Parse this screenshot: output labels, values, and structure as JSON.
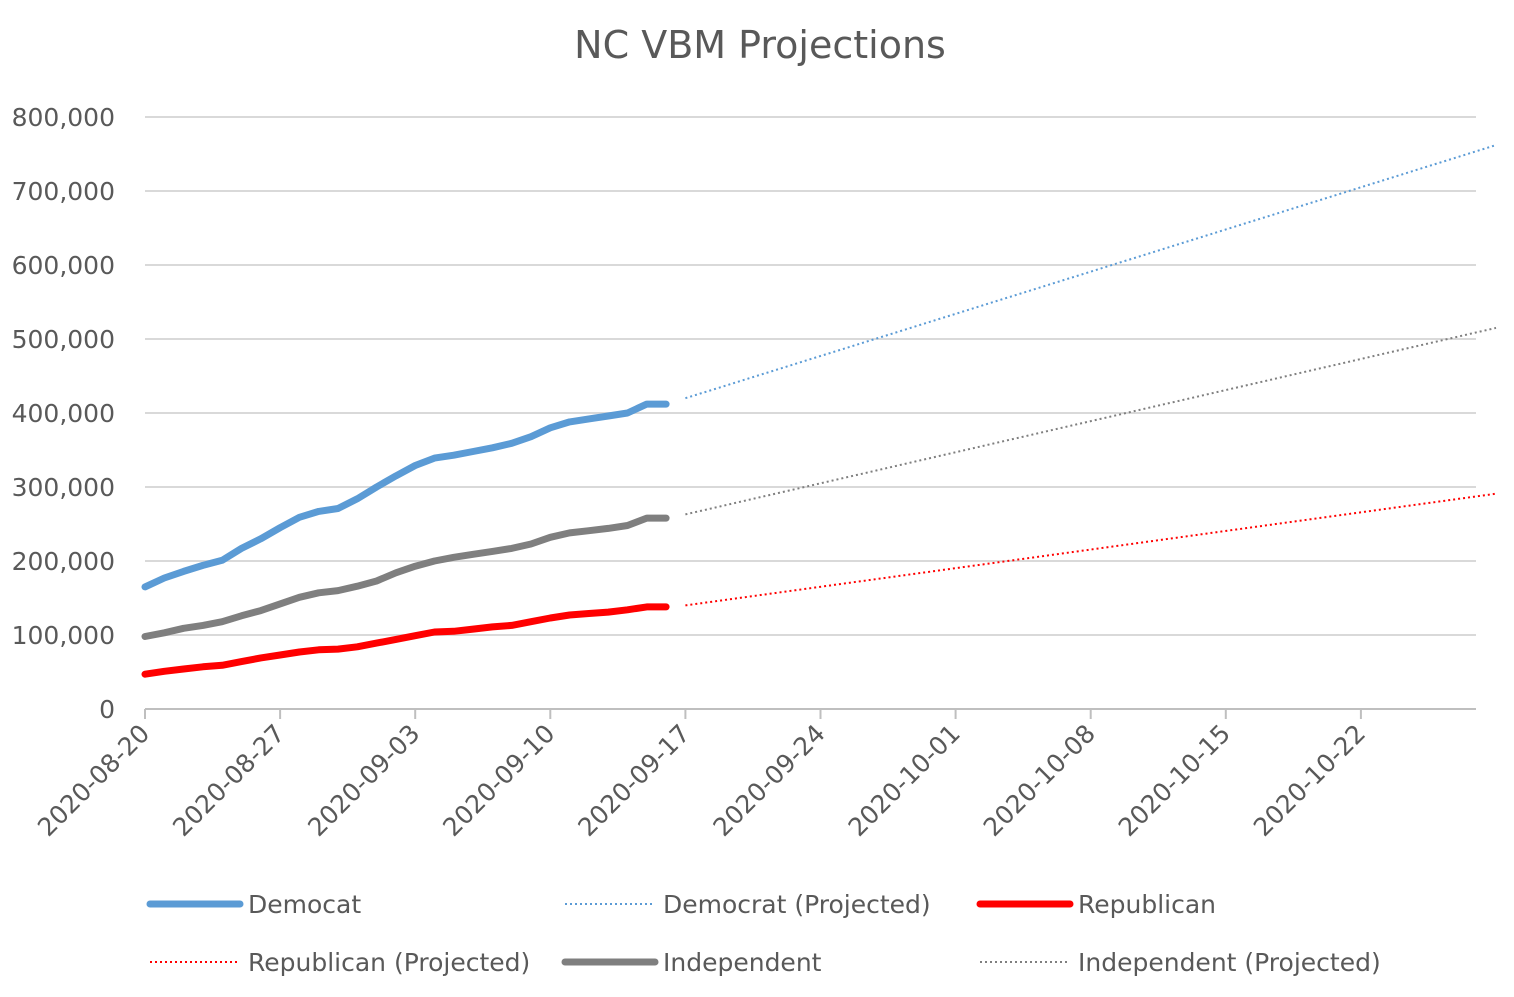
{
  "chart_data": {
    "type": "line",
    "title": "NC VBM Projections",
    "xlabel": "",
    "ylabel": "",
    "ylim": [
      0,
      800000
    ],
    "xlim": [
      "2020-08-20",
      "2020-10-29"
    ],
    "grid": true,
    "y_ticks": [
      {
        "value": 0,
        "label": "0"
      },
      {
        "value": 100000,
        "label": "100,000"
      },
      {
        "value": 200000,
        "label": "200,000"
      },
      {
        "value": 300000,
        "label": "300,000"
      },
      {
        "value": 400000,
        "label": "400,000"
      },
      {
        "value": 500000,
        "label": "500,000"
      },
      {
        "value": 600000,
        "label": "600,000"
      },
      {
        "value": 700000,
        "label": "700,000"
      },
      {
        "value": 800000,
        "label": "800,000"
      }
    ],
    "x_ticks": [
      "2020-08-20",
      "2020-08-27",
      "2020-09-03",
      "2020-09-10",
      "2020-09-17",
      "2020-09-24",
      "2020-10-01",
      "2020-10-08",
      "2020-10-15",
      "2020-10-22"
    ],
    "legend_position": "bottom",
    "series": [
      {
        "name": "Democat",
        "color": "#5B9BD5",
        "style": "solid",
        "x": [
          "2020-08-20",
          "2020-08-21",
          "2020-08-22",
          "2020-08-23",
          "2020-08-24",
          "2020-08-25",
          "2020-08-26",
          "2020-08-27",
          "2020-08-28",
          "2020-08-29",
          "2020-08-30",
          "2020-08-31",
          "2020-09-01",
          "2020-09-02",
          "2020-09-03",
          "2020-09-04",
          "2020-09-05",
          "2020-09-06",
          "2020-09-07",
          "2020-09-08",
          "2020-09-09",
          "2020-09-10",
          "2020-09-11",
          "2020-09-12",
          "2020-09-13",
          "2020-09-14",
          "2020-09-15",
          "2020-09-16"
        ],
        "y": [
          165000,
          177000,
          186000,
          194000,
          201000,
          217000,
          230000,
          245000,
          259000,
          267000,
          271000,
          284000,
          300000,
          315000,
          329000,
          339000,
          343000,
          348000,
          353000,
          359000,
          368000,
          380000,
          388000,
          392000,
          396000,
          400000,
          412000,
          412000
        ]
      },
      {
        "name": "Democrat (Projected)",
        "color": "#5B9BD5",
        "style": "dotted",
        "x": [
          "2020-09-17",
          "2020-10-29"
        ],
        "y": [
          420000,
          762000
        ]
      },
      {
        "name": "Republican",
        "color": "#FF0000",
        "style": "solid",
        "x": [
          "2020-08-20",
          "2020-08-21",
          "2020-08-22",
          "2020-08-23",
          "2020-08-24",
          "2020-08-25",
          "2020-08-26",
          "2020-08-27",
          "2020-08-28",
          "2020-08-29",
          "2020-08-30",
          "2020-08-31",
          "2020-09-01",
          "2020-09-02",
          "2020-09-03",
          "2020-09-04",
          "2020-09-05",
          "2020-09-06",
          "2020-09-07",
          "2020-09-08",
          "2020-09-09",
          "2020-09-10",
          "2020-09-11",
          "2020-09-12",
          "2020-09-13",
          "2020-09-14",
          "2020-09-15",
          "2020-09-16"
        ],
        "y": [
          47000,
          51000,
          54000,
          57000,
          59000,
          64000,
          69000,
          73000,
          77000,
          80000,
          81000,
          84000,
          89000,
          94000,
          99000,
          104000,
          105000,
          108000,
          111000,
          113000,
          118000,
          123000,
          127000,
          129000,
          131000,
          134000,
          138000,
          138000
        ]
      },
      {
        "name": "Republican (Projected)",
        "color": "#FF0000",
        "style": "dotted",
        "x": [
          "2020-09-17",
          "2020-10-29"
        ],
        "y": [
          140000,
          291000
        ]
      },
      {
        "name": "Independent",
        "color": "#7F7F7F",
        "style": "solid",
        "x": [
          "2020-08-20",
          "2020-08-21",
          "2020-08-22",
          "2020-08-23",
          "2020-08-24",
          "2020-08-25",
          "2020-08-26",
          "2020-08-27",
          "2020-08-28",
          "2020-08-29",
          "2020-08-30",
          "2020-08-31",
          "2020-09-01",
          "2020-09-02",
          "2020-09-03",
          "2020-09-04",
          "2020-09-05",
          "2020-09-06",
          "2020-09-07",
          "2020-09-08",
          "2020-09-09",
          "2020-09-10",
          "2020-09-11",
          "2020-09-12",
          "2020-09-13",
          "2020-09-14",
          "2020-09-15",
          "2020-09-16"
        ],
        "y": [
          98000,
          103000,
          109000,
          113000,
          118000,
          126000,
          133000,
          142000,
          151000,
          157000,
          160000,
          166000,
          173000,
          184000,
          193000,
          200000,
          205000,
          209000,
          213000,
          217000,
          223000,
          232000,
          238000,
          241000,
          244000,
          248000,
          258000,
          258000
        ]
      },
      {
        "name": "Independent (Projected)",
        "color": "#7F7F7F",
        "style": "dotted",
        "x": [
          "2020-09-17",
          "2020-10-29"
        ],
        "y": [
          263000,
          515000
        ]
      }
    ]
  }
}
